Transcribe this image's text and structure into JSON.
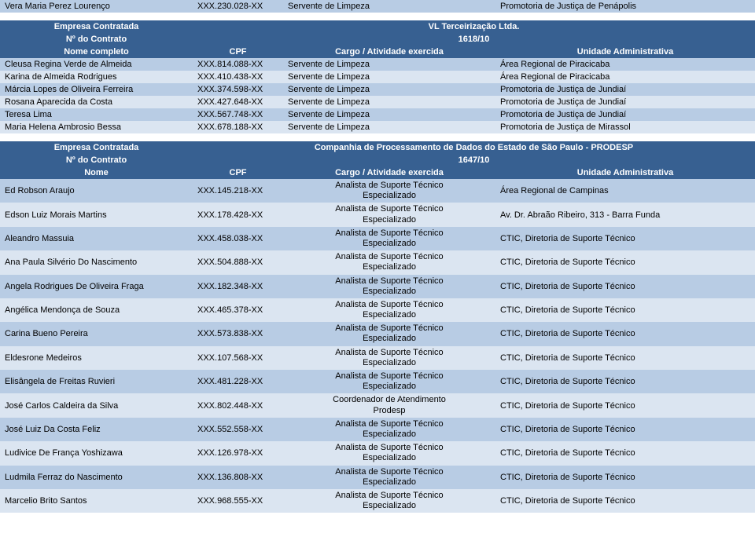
{
  "colors": {
    "header_bg": "#376091",
    "header_fg": "#ffffff",
    "row_odd": "#b8cce4",
    "row_even": "#dbe5f1"
  },
  "top_row": {
    "name": "Vera Maria Perez Lourenço",
    "cpf": "XXX.230.028-XX",
    "cargo": "Servente de Limpeza",
    "unit": "Promotoria de Justiça de Penápolis"
  },
  "section1": {
    "company_label": "Empresa Contratada",
    "company_value": "VL Terceirização Ltda.",
    "contract_label": "Nº do Contrato",
    "contract_value": "1618/10",
    "headers": [
      "Nome completo",
      "CPF",
      "Cargo / Atividade exercida",
      "Unidade Administrativa"
    ],
    "rows": [
      {
        "name": "Cleusa Regina Verde de Almeida",
        "cpf": "XXX.814.088-XX",
        "cargo": "Servente de Limpeza",
        "unit": "Área Regional de Piracicaba"
      },
      {
        "name": "Karina de Almeida Rodrigues",
        "cpf": "XXX.410.438-XX",
        "cargo": "Servente de Limpeza",
        "unit": "Área Regional de Piracicaba"
      },
      {
        "name": "Márcia Lopes de Oliveira Ferreira",
        "cpf": "XXX.374.598-XX",
        "cargo": "Servente de Limpeza",
        "unit": "Promotoria de Justiça de Jundiaí"
      },
      {
        "name": "Rosana Aparecida da Costa",
        "cpf": "XXX.427.648-XX",
        "cargo": "Servente de Limpeza",
        "unit": "Promotoria de Justiça de Jundiaí"
      },
      {
        "name": "Teresa Lima",
        "cpf": "XXX.567.748-XX",
        "cargo": "Servente de Limpeza",
        "unit": "Promotoria de Justiça de Jundiaí"
      },
      {
        "name": "Maria Helena Ambrosio Bessa",
        "cpf": "XXX.678.188-XX",
        "cargo": "Servente de Limpeza",
        "unit": "Promotoria de Justiça de Mirassol"
      }
    ]
  },
  "section2": {
    "company_label": "Empresa Contratada",
    "company_value": "Companhia de Processamento de Dados do Estado de São Paulo - PRODESP",
    "contract_label": "Nº do Contrato",
    "contract_value": "1647/10",
    "headers": [
      "Nome",
      "CPF",
      "Cargo / Atividade exercida",
      "Unidade Administrativa"
    ],
    "rows": [
      {
        "name": "Ed Robson Araujo",
        "cpf": "XXX.145.218-XX",
        "cargo": "Analista de Suporte Técnico Especializado",
        "unit": "Área Regional de Campinas"
      },
      {
        "name": "Edson Luiz Morais Martins",
        "cpf": "XXX.178.428-XX",
        "cargo": "Analista de Suporte Técnico Especializado",
        "unit": "Av. Dr. Abraão Ribeiro, 313 - Barra Funda"
      },
      {
        "name": "Aleandro Massuia",
        "cpf": "XXX.458.038-XX",
        "cargo": "Analista de Suporte Técnico Especializado",
        "unit": "CTIC, Diretoria de Suporte Técnico"
      },
      {
        "name": "Ana Paula Silvério Do Nascimento",
        "cpf": "XXX.504.888-XX",
        "cargo": "Analista de Suporte Técnico Especializado",
        "unit": "CTIC, Diretoria de Suporte Técnico"
      },
      {
        "name": "Angela Rodrigues De Oliveira Fraga",
        "cpf": "XXX.182.348-XX",
        "cargo": "Analista de Suporte Técnico Especializado",
        "unit": "CTIC, Diretoria de Suporte Técnico"
      },
      {
        "name": "Angélica Mendonça de Souza",
        "cpf": "XXX.465.378-XX",
        "cargo": "Analista de Suporte Técnico Especializado",
        "unit": "CTIC, Diretoria de Suporte Técnico"
      },
      {
        "name": "Carina Bueno Pereira",
        "cpf": "XXX.573.838-XX",
        "cargo": "Analista de Suporte Técnico Especializado",
        "unit": "CTIC, Diretoria de Suporte Técnico"
      },
      {
        "name": "Eldesrone Medeiros",
        "cpf": "XXX.107.568-XX",
        "cargo": "Analista de Suporte Técnico Especializado",
        "unit": "CTIC, Diretoria de Suporte Técnico"
      },
      {
        "name": "Elisângela de Freitas Ruvieri",
        "cpf": "XXX.481.228-XX",
        "cargo": "Analista de Suporte Técnico Especializado",
        "unit": "CTIC, Diretoria de Suporte Técnico"
      },
      {
        "name": "José Carlos Caldeira da Silva",
        "cpf": "XXX.802.448-XX",
        "cargo": "Coordenador de Atendimento Prodesp",
        "unit": "CTIC, Diretoria de Suporte Técnico"
      },
      {
        "name": "José Luiz Da Costa Feliz",
        "cpf": "XXX.552.558-XX",
        "cargo": "Analista de Suporte Técnico Especializado",
        "unit": "CTIC, Diretoria de Suporte Técnico"
      },
      {
        "name": "Ludivice De França Yoshizawa",
        "cpf": "XXX.126.978-XX",
        "cargo": "Analista de Suporte Técnico Especializado",
        "unit": "CTIC, Diretoria de Suporte Técnico"
      },
      {
        "name": "Ludmila Ferraz do Nascimento",
        "cpf": "XXX.136.808-XX",
        "cargo": "Analista de Suporte Técnico Especializado",
        "unit": "CTIC, Diretoria de Suporte Técnico"
      },
      {
        "name": "Marcelio Brito Santos",
        "cpf": "XXX.968.555-XX",
        "cargo": "Analista de Suporte Técnico Especializado",
        "unit": "CTIC, Diretoria de Suporte Técnico"
      }
    ]
  }
}
